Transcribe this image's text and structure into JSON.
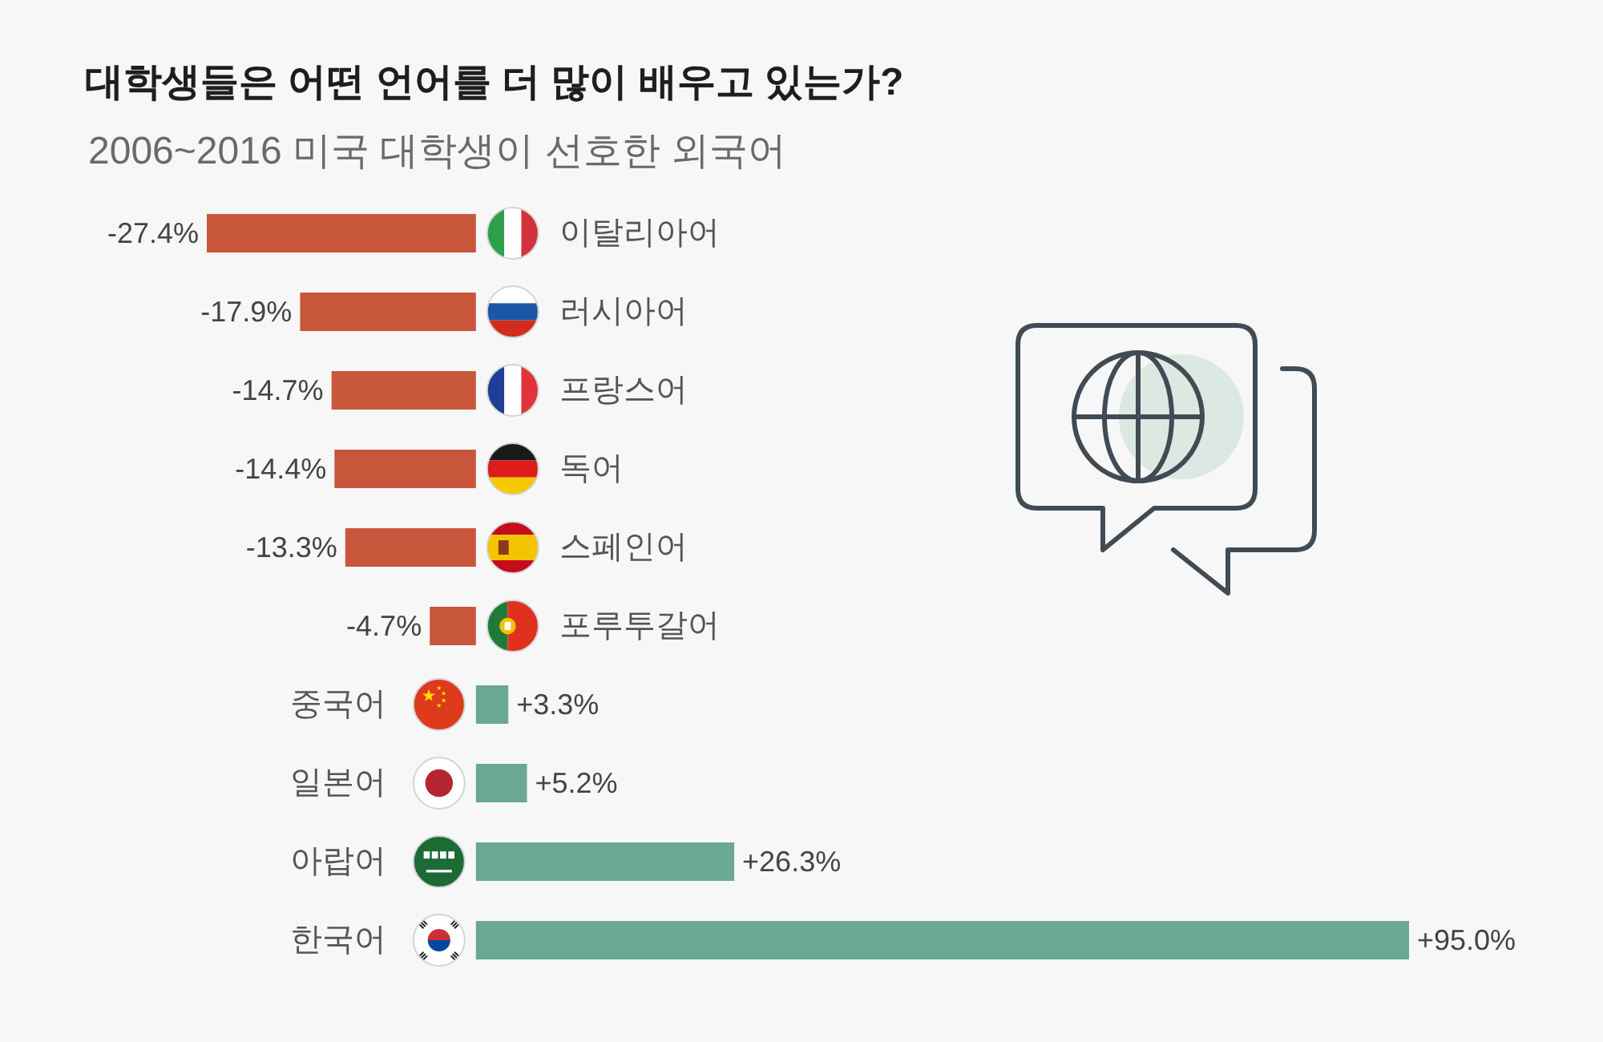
{
  "chart_data": {
    "type": "bar",
    "orientation": "horizontal",
    "title": "대학생들은 어떤 언어를 더 많이 배우고 있는가?",
    "subtitle": "2006~2016 미국 대학생이 선호한 외국어",
    "categories": [
      "이탈리아어",
      "러시아어",
      "프랑스어",
      "독어",
      "스페인어",
      "포루투갈어",
      "중국어",
      "일본어",
      "아랍어",
      "한국어"
    ],
    "values": [
      -27.4,
      -17.9,
      -14.7,
      -14.4,
      -13.3,
      -4.7,
      3.3,
      5.2,
      26.3,
      95.0
    ],
    "colors": [
      "#c8563b",
      "#c8563b",
      "#c8563b",
      "#c8563b",
      "#c8563b",
      "#c8563b",
      "#6ba892",
      "#6ba892",
      "#6ba892",
      "#6ba892"
    ],
    "value_labels": [
      "-27.4%",
      "-17.9%",
      "-14.7%",
      "-14.4%",
      "-13.3%",
      "-4.7%",
      "+3.3%",
      "+5.2%",
      "+26.3%",
      "+95.0%"
    ],
    "tick_labels": "y"
  }
}
